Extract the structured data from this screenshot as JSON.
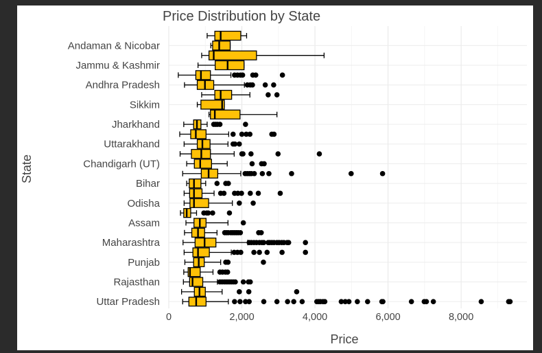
{
  "chart_data": {
    "type": "boxplot",
    "title": "Price Distribution by State",
    "xlabel": "Price",
    "ylabel": "State",
    "xlim": [
      0,
      9800
    ],
    "x_ticks": [
      0,
      2000,
      4000,
      6000,
      8000
    ],
    "x_tick_labels": [
      "0",
      "2,000",
      "4,000",
      "6,000",
      "8,000"
    ],
    "box_color": "#FFC107",
    "outline_color": "#000000",
    "grid": true,
    "legend": false,
    "rows": [
      {
        "label": "",
        "min": 1050,
        "q1": 1260,
        "median": 1420,
        "q3": 1970,
        "max": 2130,
        "outliers": []
      },
      {
        "label": "Andaman & Nicobar",
        "min": 1150,
        "q1": 1200,
        "median": 1380,
        "q3": 1680,
        "max": 1680,
        "outliers": []
      },
      {
        "label": "",
        "min": 900,
        "q1": 1100,
        "median": 1230,
        "q3": 2400,
        "max": 4250,
        "outliers": []
      },
      {
        "label": "Jammu & Kashmir",
        "min": 800,
        "q1": 1270,
        "median": 1610,
        "q3": 2060,
        "max": 2060,
        "outliers": []
      },
      {
        "label": "",
        "min": 260,
        "q1": 740,
        "median": 880,
        "q3": 1140,
        "max": 1700,
        "outliers": [
          1800,
          1880,
          1960,
          2020,
          2300,
          2380,
          3110
        ]
      },
      {
        "label": "Andhra Pradesh",
        "min": 430,
        "q1": 780,
        "median": 990,
        "q3": 1230,
        "max": 2070,
        "outliers": [
          2150,
          2230,
          2290,
          2640,
          2870
        ]
      },
      {
        "label": "",
        "min": 900,
        "q1": 1260,
        "median": 1420,
        "q3": 1720,
        "max": 2220,
        "outliers": [
          2720,
          2960
        ]
      },
      {
        "label": "Sikkim",
        "min": 780,
        "q1": 880,
        "median": 1460,
        "q3": 1520,
        "max": 1520,
        "outliers": []
      },
      {
        "label": "",
        "min": 1100,
        "q1": 1140,
        "median": 1260,
        "q3": 1950,
        "max": 2960,
        "outliers": []
      },
      {
        "label": "Jharkhand",
        "min": 410,
        "q1": 680,
        "median": 770,
        "q3": 880,
        "max": 1050,
        "outliers": [
          1230,
          1280,
          1330,
          1400,
          2100
        ]
      },
      {
        "label": "",
        "min": 300,
        "q1": 600,
        "median": 740,
        "q3": 1020,
        "max": 1640,
        "outliers": [
          1760,
          2000,
          2120,
          2220,
          2820,
          2880
        ]
      },
      {
        "label": "Uttarakhand",
        "min": 420,
        "q1": 780,
        "median": 920,
        "q3": 1130,
        "max": 1620,
        "outliers": [
          1760,
          1810,
          1930
        ]
      },
      {
        "label": "",
        "min": 310,
        "q1": 620,
        "median": 890,
        "q3": 1140,
        "max": 1790,
        "outliers": [
          2000,
          2030,
          2250,
          2990,
          4120
        ]
      },
      {
        "label": "Chandigarh (UT)",
        "min": 490,
        "q1": 700,
        "median": 860,
        "q3": 1170,
        "max": 1600,
        "outliers": [
          2280,
          2540,
          2610
        ]
      },
      {
        "label": "",
        "min": 380,
        "q1": 890,
        "median": 1090,
        "q3": 1340,
        "max": 1970,
        "outliers": [
          2090,
          2150,
          2210,
          2260,
          2340,
          2560,
          2740,
          3360,
          4990,
          5850
        ]
      },
      {
        "label": "Bihar",
        "min": 490,
        "q1": 560,
        "median": 690,
        "q3": 880,
        "max": 1010,
        "outliers": [
          1320,
          1560,
          1630
        ]
      },
      {
        "label": "",
        "min": 420,
        "q1": 570,
        "median": 690,
        "q3": 910,
        "max": 1240,
        "outliers": [
          1420,
          1510,
          1800,
          1890,
          1990,
          2230,
          2450,
          3050
        ]
      },
      {
        "label": "Odisha",
        "min": 420,
        "q1": 580,
        "median": 690,
        "q3": 1090,
        "max": 1740,
        "outliers": [
          1930,
          2310
        ]
      },
      {
        "label": "",
        "min": 320,
        "q1": 410,
        "median": 490,
        "q3": 600,
        "max": 760,
        "outliers": [
          960,
          1040,
          1080,
          1200,
          1660
        ]
      },
      {
        "label": "Assam",
        "min": 470,
        "q1": 690,
        "median": 850,
        "q3": 1020,
        "max": 1620,
        "outliers": [
          2040
        ]
      },
      {
        "label": "",
        "min": 430,
        "q1": 630,
        "median": 800,
        "q3": 980,
        "max": 1320,
        "outliers": [
          1530,
          1580,
          1630,
          1700,
          1750,
          1800,
          1850,
          1900,
          1960,
          2460,
          2530
        ]
      },
      {
        "label": "Maharashtra",
        "min": 390,
        "q1": 720,
        "median": 980,
        "q3": 1290,
        "max": 2160,
        "outliers": [
          2200,
          2260,
          2330,
          2400,
          2480,
          2550,
          2600,
          2720,
          2760,
          2820,
          2880,
          2960,
          3020,
          3090,
          3150,
          3240,
          3280,
          3740
        ]
      },
      {
        "label": "",
        "min": 420,
        "q1": 660,
        "median": 800,
        "q3": 1110,
        "max": 1710,
        "outliers": [
          1790,
          1880,
          1970,
          2330,
          2480,
          2690,
          3100,
          3740
        ]
      },
      {
        "label": "Punjab",
        "min": 440,
        "q1": 680,
        "median": 820,
        "q3": 970,
        "max": 1420,
        "outliers": [
          1560,
          1620,
          2590
        ]
      },
      {
        "label": "",
        "min": 410,
        "q1": 530,
        "median": 580,
        "q3": 860,
        "max": 1210,
        "outliers": [
          1400,
          1470,
          1550,
          1610
        ]
      },
      {
        "label": "Rajasthan",
        "min": 400,
        "q1": 570,
        "median": 650,
        "q3": 930,
        "max": 1330,
        "outliers": [
          1400,
          1460,
          1520,
          1570,
          1620,
          1670,
          1720,
          1770,
          1820,
          2040,
          2180,
          2230
        ]
      },
      {
        "label": "",
        "min": 350,
        "q1": 700,
        "median": 840,
        "q3": 1000,
        "max": 1460,
        "outliers": [
          1930,
          2190,
          3500
        ]
      },
      {
        "label": "Uttar Pradesh",
        "min": 380,
        "q1": 550,
        "median": 750,
        "q3": 1020,
        "max": 1630,
        "outliers": [
          1800,
          1950,
          2100,
          2200,
          2600,
          2960,
          3250,
          3420,
          3650,
          4050,
          4100,
          4150,
          4220,
          4270,
          4720,
          4830,
          4930,
          5160,
          5440,
          5830,
          5860,
          6640,
          6990,
          7050,
          7240,
          8550,
          9300,
          9340
        ]
      }
    ]
  }
}
